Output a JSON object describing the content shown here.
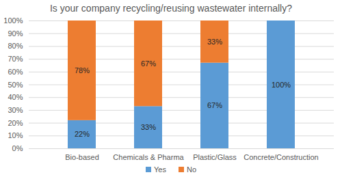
{
  "chart_data": {
    "type": "bar",
    "title": "Is your company recycling/reusing wastewater internally?",
    "categories": [
      "Bio-based",
      "Chemicals & Pharma",
      "Plastic/Glass",
      "Concrete/Construction"
    ],
    "series": [
      {
        "name": "Yes",
        "color": "#5B9BD5",
        "values": [
          22,
          33,
          67,
          100
        ],
        "value_labels": [
          "22%",
          "33%",
          "67%",
          "100%"
        ]
      },
      {
        "name": "No",
        "color": "#ED7D31",
        "values": [
          78,
          67,
          33,
          0
        ],
        "value_labels": [
          "78%",
          "67%",
          "33%",
          null
        ]
      }
    ],
    "ylim": [
      0,
      100
    ],
    "yticks": [
      {
        "value": 0,
        "label": "0%"
      },
      {
        "value": 10,
        "label": "10%"
      },
      {
        "value": 20,
        "label": "20%"
      },
      {
        "value": 30,
        "label": "30%"
      },
      {
        "value": 40,
        "label": "40%"
      },
      {
        "value": 50,
        "label": "50%"
      },
      {
        "value": 60,
        "label": "60%"
      },
      {
        "value": 70,
        "label": "70%"
      },
      {
        "value": 80,
        "label": "80%"
      },
      {
        "value": 90,
        "label": "90%"
      },
      {
        "value": 100,
        "label": "100%"
      }
    ],
    "grid": true,
    "stacked": true,
    "data_labels": true,
    "legend": "bottom"
  }
}
